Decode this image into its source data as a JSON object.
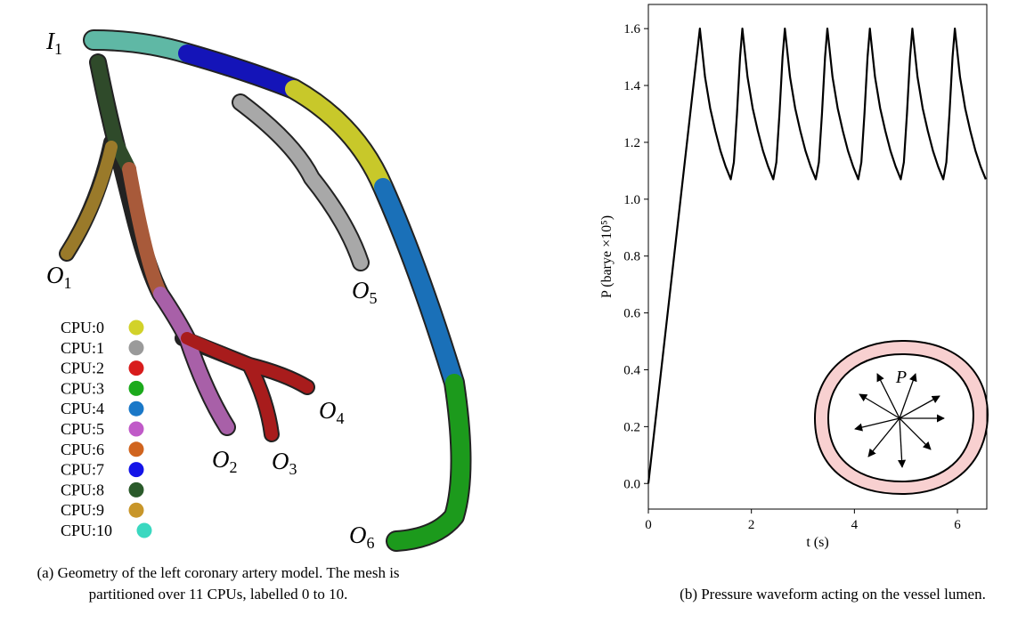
{
  "panel_a": {
    "labels": [
      {
        "main": "I",
        "sub": "1"
      },
      {
        "main": "O",
        "sub": "1"
      },
      {
        "main": "O",
        "sub": "2"
      },
      {
        "main": "O",
        "sub": "3"
      },
      {
        "main": "O",
        "sub": "4"
      },
      {
        "main": "O",
        "sub": "5"
      },
      {
        "main": "O",
        "sub": "6"
      }
    ],
    "legend": [
      {
        "label": "CPU:0",
        "color": "#d2d22a"
      },
      {
        "label": "CPU:1",
        "color": "#9a9a9a"
      },
      {
        "label": "CPU:2",
        "color": "#d81c1c"
      },
      {
        "label": "CPU:3",
        "color": "#1caa1c"
      },
      {
        "label": "CPU:4",
        "color": "#1a78c8"
      },
      {
        "label": "CPU:5",
        "color": "#c05ac8"
      },
      {
        "label": "CPU:6",
        "color": "#d0641e"
      },
      {
        "label": "CPU:7",
        "color": "#1414e8"
      },
      {
        "label": "CPU:8",
        "color": "#2a5a2a"
      },
      {
        "label": "CPU:9",
        "color": "#c8962a"
      },
      {
        "label": "CPU:10",
        "color": "#3ad8c0"
      }
    ],
    "caption": "(a) Geometry of the left coronary artery model. The mesh is partitioned over 11 CPUs, labelled 0 to 10."
  },
  "chart_data": {
    "type": "line",
    "caption": "(b) Pressure waveform acting on the vessel lumen.",
    "xlabel": "t (s)",
    "ylabel": "P (barye ×10⁵)",
    "inset_label": "P",
    "color": "#000000",
    "grid": false,
    "xlim": [
      0,
      6.57
    ],
    "ylim": [
      -0.09,
      1.685
    ],
    "xticks": [
      0,
      2,
      4,
      6
    ],
    "yticks": [
      {
        "value": 0,
        "label": "0.0"
      },
      0.2,
      0.4,
      0.6,
      0.8,
      {
        "value": 1,
        "label": "1.0"
      },
      1.2,
      1.4,
      1.6
    ],
    "x": [
      0,
      1.0,
      1.1,
      1.2,
      1.3,
      1.4,
      1.5,
      1.6,
      1.66,
      1.72,
      1.78,
      1.825,
      1.925,
      2.025,
      2.125,
      2.225,
      2.325,
      2.425,
      2.485,
      2.545,
      2.605,
      2.65,
      2.75,
      2.85,
      2.95,
      3.05,
      3.15,
      3.25,
      3.31,
      3.37,
      3.43,
      3.475,
      3.575,
      3.675,
      3.775,
      3.875,
      3.975,
      4.075,
      4.135,
      4.195,
      4.255,
      4.3,
      4.4,
      4.5,
      4.6,
      4.7,
      4.8,
      4.9,
      4.96,
      5.02,
      5.08,
      5.125,
      5.225,
      5.325,
      5.425,
      5.525,
      5.625,
      5.725,
      5.785,
      5.845,
      5.905,
      5.95,
      6.05,
      6.15,
      6.25,
      6.35,
      6.45,
      6.55
    ],
    "values": [
      0,
      1.6,
      1.43,
      1.32,
      1.24,
      1.17,
      1.115,
      1.07,
      1.13,
      1.3,
      1.5,
      1.6,
      1.43,
      1.32,
      1.24,
      1.17,
      1.115,
      1.07,
      1.13,
      1.3,
      1.5,
      1.6,
      1.43,
      1.32,
      1.24,
      1.17,
      1.115,
      1.07,
      1.13,
      1.3,
      1.5,
      1.6,
      1.43,
      1.32,
      1.24,
      1.17,
      1.115,
      1.07,
      1.13,
      1.3,
      1.5,
      1.6,
      1.43,
      1.32,
      1.24,
      1.17,
      1.115,
      1.07,
      1.13,
      1.3,
      1.5,
      1.6,
      1.43,
      1.32,
      1.24,
      1.17,
      1.115,
      1.07,
      1.13,
      1.3,
      1.5,
      1.6,
      1.43,
      1.32,
      1.24,
      1.17,
      1.115,
      1.07
    ]
  }
}
